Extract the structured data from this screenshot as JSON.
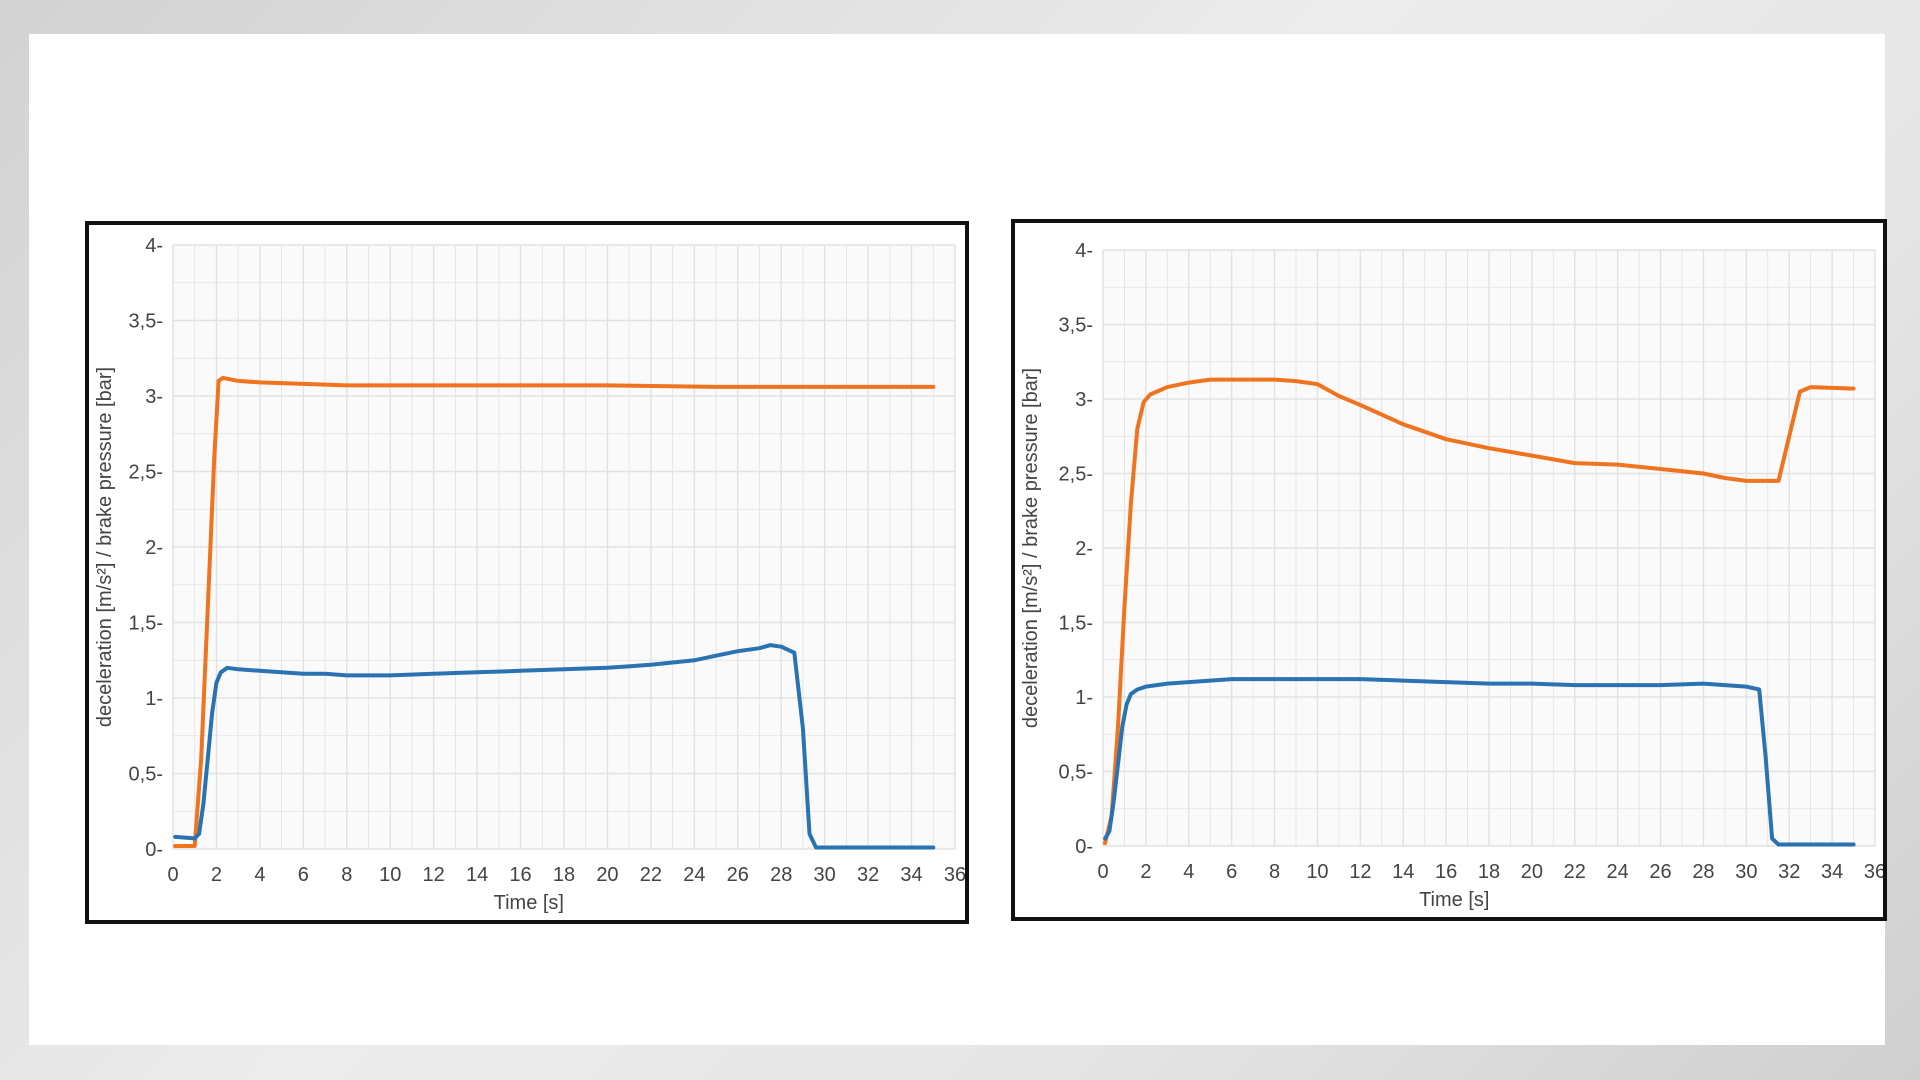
{
  "colors": {
    "brake_pressure": "#f07320",
    "deceleration": "#2a73b3",
    "grid": "#e1e1e1",
    "plot_bg": "#fafafa",
    "axis_text": "#444444"
  },
  "chart_data": [
    {
      "type": "line",
      "title": "",
      "xlabel": "Time [s]",
      "ylabel": "deceleration [m/s²] / brake pressure [bar]",
      "xlim": [
        0,
        36
      ],
      "ylim": [
        0,
        4
      ],
      "x_ticks": [
        0,
        2,
        4,
        6,
        8,
        10,
        12,
        14,
        16,
        18,
        20,
        22,
        24,
        26,
        28,
        30,
        32,
        34,
        36
      ],
      "x_tick_labels": [
        "0",
        "2",
        "4",
        "6",
        "8",
        "10",
        "12",
        "14",
        "16",
        "18",
        "20",
        "22",
        "24",
        "26",
        "28",
        "30",
        "32",
        "34",
        "36"
      ],
      "y_ticks": [
        0,
        0.5,
        1,
        1.5,
        2,
        2.5,
        3,
        3.5,
        4
      ],
      "y_tick_labels": [
        "0",
        "0,5",
        "1",
        "1,5",
        "2",
        "2,5",
        "3",
        "3,5",
        "4"
      ],
      "grid": true,
      "series": [
        {
          "color_key": "brake_pressure",
          "x": [
            0.1,
            1.0,
            1.3,
            1.6,
            1.9,
            2.1,
            2.3,
            3,
            4,
            6,
            8,
            10,
            15,
            20,
            25,
            30,
            35
          ],
          "y": [
            0.02,
            0.02,
            0.6,
            1.6,
            2.6,
            3.1,
            3.12,
            3.1,
            3.09,
            3.08,
            3.07,
            3.07,
            3.07,
            3.07,
            3.06,
            3.06,
            3.06
          ]
        },
        {
          "color_key": "deceleration",
          "x": [
            0.1,
            1.0,
            1.2,
            1.4,
            1.6,
            1.8,
            2.0,
            2.2,
            2.5,
            3,
            4,
            5,
            6,
            7,
            8,
            10,
            12,
            14,
            16,
            18,
            20,
            22,
            24,
            25,
            26,
            27,
            27.5,
            28,
            28.6,
            29.0,
            29.3,
            29.6,
            30,
            32,
            35
          ],
          "y": [
            0.08,
            0.07,
            0.1,
            0.3,
            0.6,
            0.9,
            1.1,
            1.17,
            1.2,
            1.19,
            1.18,
            1.17,
            1.16,
            1.16,
            1.15,
            1.15,
            1.16,
            1.17,
            1.18,
            1.19,
            1.2,
            1.22,
            1.25,
            1.28,
            1.31,
            1.33,
            1.35,
            1.34,
            1.3,
            0.8,
            0.1,
            0.01,
            0.01,
            0.01,
            0.01
          ]
        }
      ]
    },
    {
      "type": "line",
      "title": "",
      "xlabel": "Time [s]",
      "ylabel": "deceleration [m/s²] / brake pressure [bar]",
      "xlim": [
        0,
        36
      ],
      "ylim": [
        0,
        4
      ],
      "x_ticks": [
        0,
        2,
        4,
        6,
        8,
        10,
        12,
        14,
        16,
        18,
        20,
        22,
        24,
        26,
        28,
        30,
        32,
        34,
        36
      ],
      "x_tick_labels": [
        "0",
        "2",
        "4",
        "6",
        "8",
        "10",
        "12",
        "14",
        "16",
        "18",
        "20",
        "22",
        "24",
        "26",
        "28",
        "30",
        "32",
        "34",
        "36"
      ],
      "y_ticks": [
        0,
        0.5,
        1,
        1.5,
        2,
        2.5,
        3,
        3.5,
        4
      ],
      "y_tick_labels": [
        "0",
        "0,5",
        "1",
        "1,5",
        "2",
        "2,5",
        "3",
        "3,5",
        "4"
      ],
      "grid": true,
      "series": [
        {
          "color_key": "brake_pressure",
          "x": [
            0.1,
            0.4,
            0.7,
            1.0,
            1.3,
            1.6,
            1.9,
            2.2,
            3,
            4,
            5,
            6,
            8,
            9,
            10,
            11,
            12,
            14,
            16,
            18,
            20,
            22,
            24,
            26,
            28,
            29,
            30,
            31.5,
            32,
            32.5,
            33,
            35
          ],
          "y": [
            0.02,
            0.2,
            0.8,
            1.6,
            2.3,
            2.8,
            2.98,
            3.03,
            3.08,
            3.11,
            3.13,
            3.13,
            3.13,
            3.12,
            3.1,
            3.02,
            2.96,
            2.83,
            2.73,
            2.67,
            2.62,
            2.57,
            2.56,
            2.53,
            2.5,
            2.47,
            2.45,
            2.45,
            2.75,
            3.05,
            3.08,
            3.07
          ]
        },
        {
          "color_key": "deceleration",
          "x": [
            0.1,
            0.3,
            0.5,
            0.7,
            0.9,
            1.1,
            1.3,
            1.6,
            2.0,
            3,
            4,
            5,
            6,
            8,
            10,
            12,
            14,
            16,
            18,
            20,
            22,
            24,
            26,
            28,
            29,
            30,
            30.6,
            30.9,
            31.2,
            31.5,
            33,
            35
          ],
          "y": [
            0.05,
            0.1,
            0.3,
            0.55,
            0.8,
            0.95,
            1.02,
            1.05,
            1.07,
            1.09,
            1.1,
            1.11,
            1.12,
            1.12,
            1.12,
            1.12,
            1.11,
            1.1,
            1.09,
            1.09,
            1.08,
            1.08,
            1.08,
            1.09,
            1.08,
            1.07,
            1.05,
            0.6,
            0.05,
            0.01,
            0.01,
            0.01
          ]
        }
      ]
    }
  ]
}
